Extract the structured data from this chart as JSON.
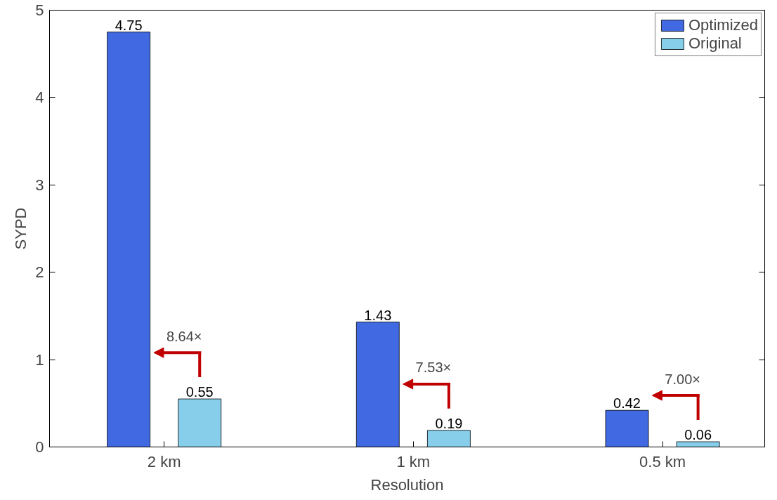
{
  "chart_data": {
    "type": "bar",
    "xlabel": "Resolution",
    "ylabel": "SYPD",
    "categories": [
      "2 km",
      "1 km",
      "0.5 km"
    ],
    "series": [
      {
        "name": "Optimized",
        "color": "#4169e1",
        "values": [
          4.75,
          1.43,
          0.42
        ]
      },
      {
        "name": "Original",
        "color": "#87ceeb",
        "values": [
          0.55,
          0.19,
          0.06
        ]
      }
    ],
    "ylim": [
      0,
      5
    ],
    "yticks": [
      0,
      1,
      2,
      3,
      4,
      5
    ],
    "data_labels": true,
    "legend": "top right",
    "grid": false,
    "annotations": [
      "8.64×",
      "7.53×",
      "7.00×"
    ]
  }
}
